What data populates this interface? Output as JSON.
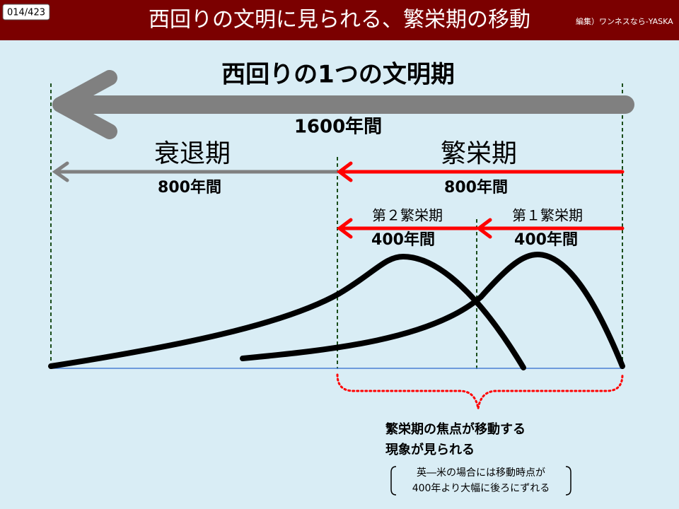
{
  "header": {
    "page": "014/423",
    "title": "西回りの文明に見られる、繁栄期の移動",
    "credit": "編集）ワンネスなら-YASKA"
  },
  "whole": {
    "label": "西回りの1つの文明期",
    "duration": "1600年間"
  },
  "decline": {
    "label": "衰退期",
    "duration": "800年間"
  },
  "prosperity": {
    "label": "繁栄期",
    "duration": "800年間"
  },
  "second": {
    "label": "第２繁栄期",
    "duration": "400年間"
  },
  "first": {
    "label": "第１繁栄期",
    "duration": "400年間"
  },
  "note": {
    "lines": [
      "繁栄期の焦点が移動する",
      "現象が見られる"
    ]
  },
  "aside": {
    "lines": [
      "英―米の場合には移動時点が",
      "400年より大幅に後ろにずれる"
    ]
  }
}
